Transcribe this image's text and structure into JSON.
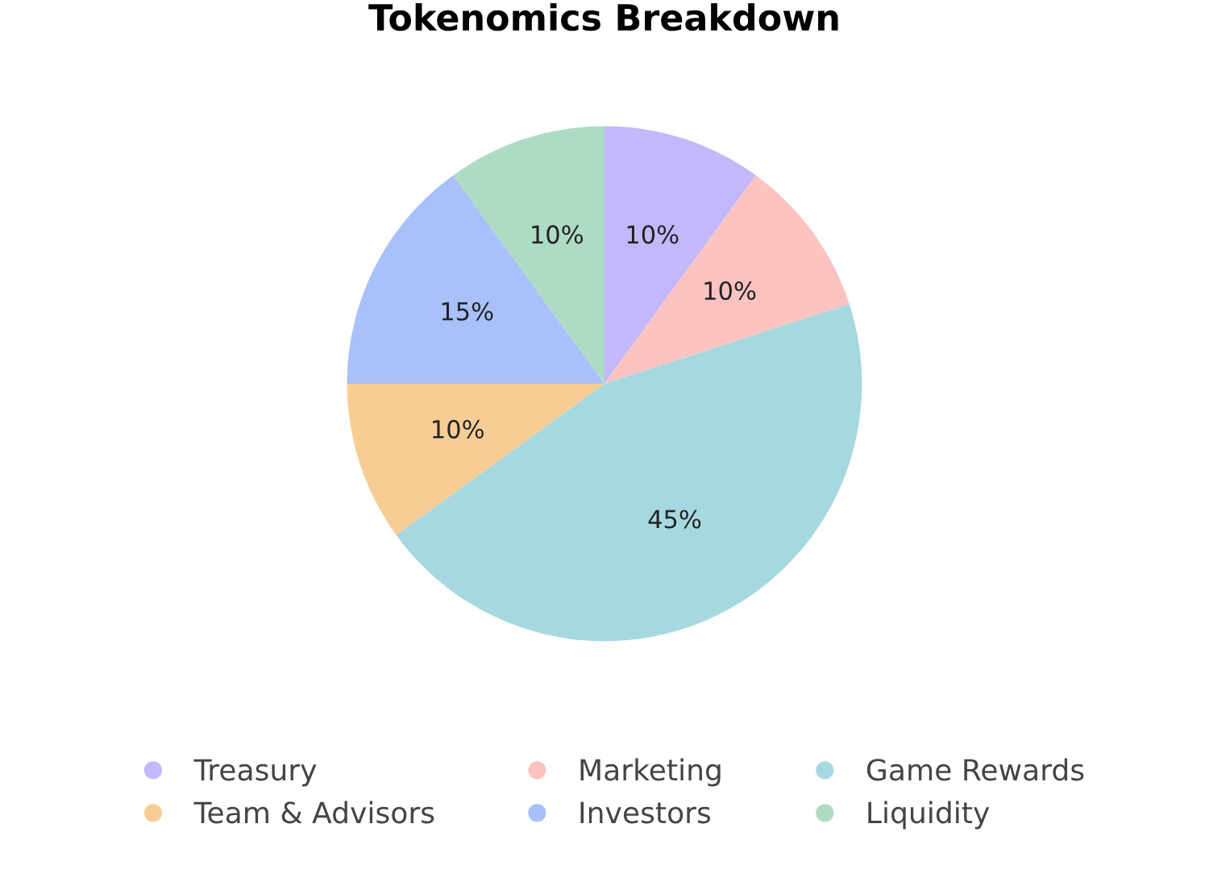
{
  "chart_data": {
    "type": "pie",
    "title": "Tokenomics Breakdown",
    "categories": [
      "Treasury",
      "Marketing",
      "Game Rewards",
      "Team & Advisors",
      "Investors",
      "Liquidity"
    ],
    "values": [
      10,
      10,
      45,
      10,
      15,
      10
    ],
    "value_labels": [
      "10%",
      "10%",
      "45%",
      "10%",
      "15%",
      "10%"
    ],
    "colors": [
      "#c3b8fb",
      "#fcc3c0",
      "#a6d8e0",
      "#f8cd95",
      "#a9c0fb",
      "#aedbc3"
    ],
    "legend": "bottom",
    "marker": "circle"
  }
}
